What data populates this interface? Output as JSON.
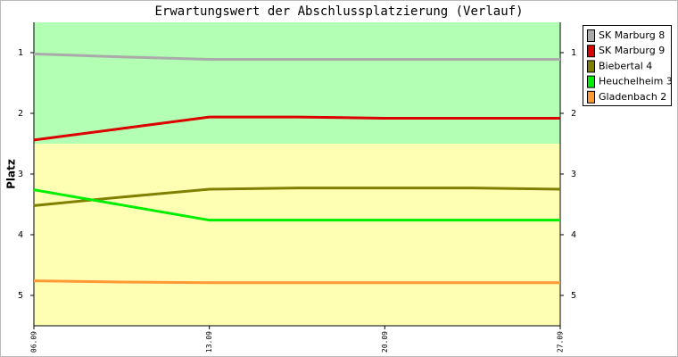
{
  "chart_data": {
    "type": "line",
    "title": "Erwartungswert der Abschlussplatzierung (Verlauf)",
    "ylabel": "Platz",
    "categories": [
      "06.09",
      null,
      "13.09",
      null,
      "20.09",
      null,
      "27.09"
    ],
    "series": [
      {
        "name": "SK Marburg 8",
        "color": "#aaaaaa",
        "values": [
          1.02,
          1.07,
          1.11,
          1.11,
          1.11,
          1.11,
          1.11
        ]
      },
      {
        "name": "SK Marburg 9",
        "color": "#dd0000",
        "values": [
          2.44,
          2.25,
          2.06,
          2.06,
          2.08,
          2.08,
          2.08
        ]
      },
      {
        "name": "Biebertal 4",
        "color": "#808000",
        "values": [
          3.52,
          3.38,
          3.25,
          3.23,
          3.23,
          3.23,
          3.25
        ]
      },
      {
        "name": "Heuchelheim 3",
        "color": "#00ee00",
        "values": [
          3.26,
          3.51,
          3.76,
          3.76,
          3.76,
          3.76,
          3.76
        ]
      },
      {
        "name": "Gladenbach 2",
        "color": "#ff9933",
        "values": [
          4.76,
          4.78,
          4.79,
          4.79,
          4.79,
          4.79,
          4.79
        ]
      }
    ],
    "ylim": [
      5.5,
      0.5
    ],
    "yticks": [
      1,
      2,
      3,
      4,
      5
    ],
    "bands": [
      {
        "from": 0.5,
        "to": 2.5,
        "color": "#b3ffb3"
      },
      {
        "from": 2.5,
        "to": 5.5,
        "color": "#ffffb3"
      }
    ],
    "legend": "right"
  }
}
